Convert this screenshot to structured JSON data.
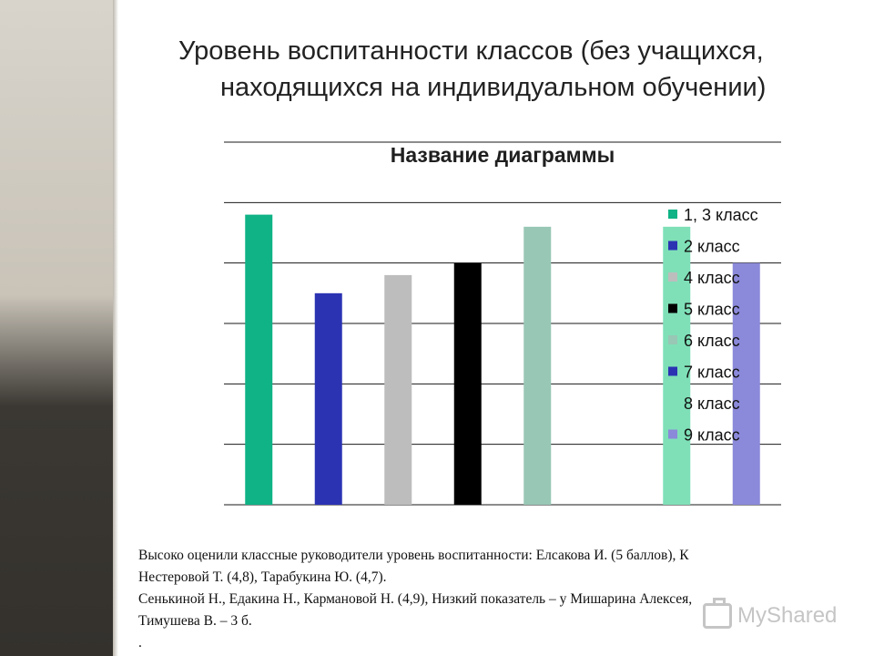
{
  "slide": {
    "title_line1": "Уровень воспитанности классов (без учащихся,",
    "title_line2": "находящихся на индивидуальном обучении)"
  },
  "chart_data": {
    "type": "bar",
    "title": "Название диаграммы",
    "legend_position": "right",
    "grid": true,
    "series": [
      {
        "name": "1, 3 класс",
        "value": 4.8,
        "color": "#0fb385"
      },
      {
        "name": "2 класс",
        "value": 3.5,
        "color": "#2b33b3"
      },
      {
        "name": "4 класс",
        "value": 3.8,
        "color": "#bdbdbd"
      },
      {
        "name": "5 класс",
        "value": 4.0,
        "color": "#000000"
      },
      {
        "name": "6 класс",
        "value": 4.6,
        "color": "#98c7b5"
      },
      {
        "name": "7 класс",
        "value": null,
        "color": "#2b33b3"
      },
      {
        "name": "8 класс",
        "value": 4.6,
        "color": "#7fe0b8"
      },
      {
        "name": "9 класс",
        "value": 4.0,
        "color": "#8b89da"
      }
    ],
    "ylim": [
      0,
      6
    ]
  },
  "footnote": {
    "line1": "Высоко оценили классные руководители уровень воспитанности: Елсакова И. (5 баллов), К",
    "line2": "Нестеровой Т. (4,8), Тарабукина Ю. (4,7).",
    "line3": "Сенькиной Н., Едакина Н., Кармановой Н. (4,9), Низкий показатель – у Мишарина Алексея,",
    "line4": "Тимушева В. – 3 б.",
    "line5": "."
  },
  "watermark": {
    "text": "MyShared",
    "icon": "presentation-icon"
  }
}
